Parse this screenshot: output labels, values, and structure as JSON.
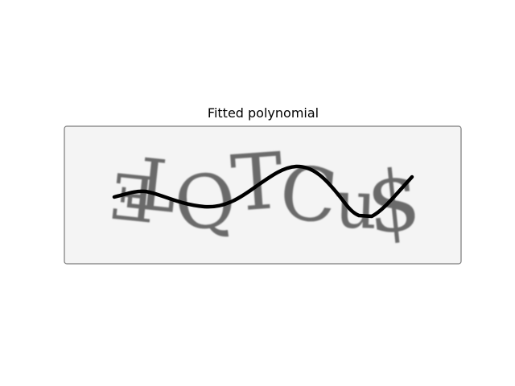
{
  "figure": {
    "title": "Fitted polynomial"
  },
  "captcha": {
    "characters": "ƎTQTCu$"
  },
  "colors": {
    "panel_background": "#f4f4f4",
    "panel_border": "#7a7a7a",
    "glyphs": "#6a6a6a",
    "curve": "#000000"
  }
}
